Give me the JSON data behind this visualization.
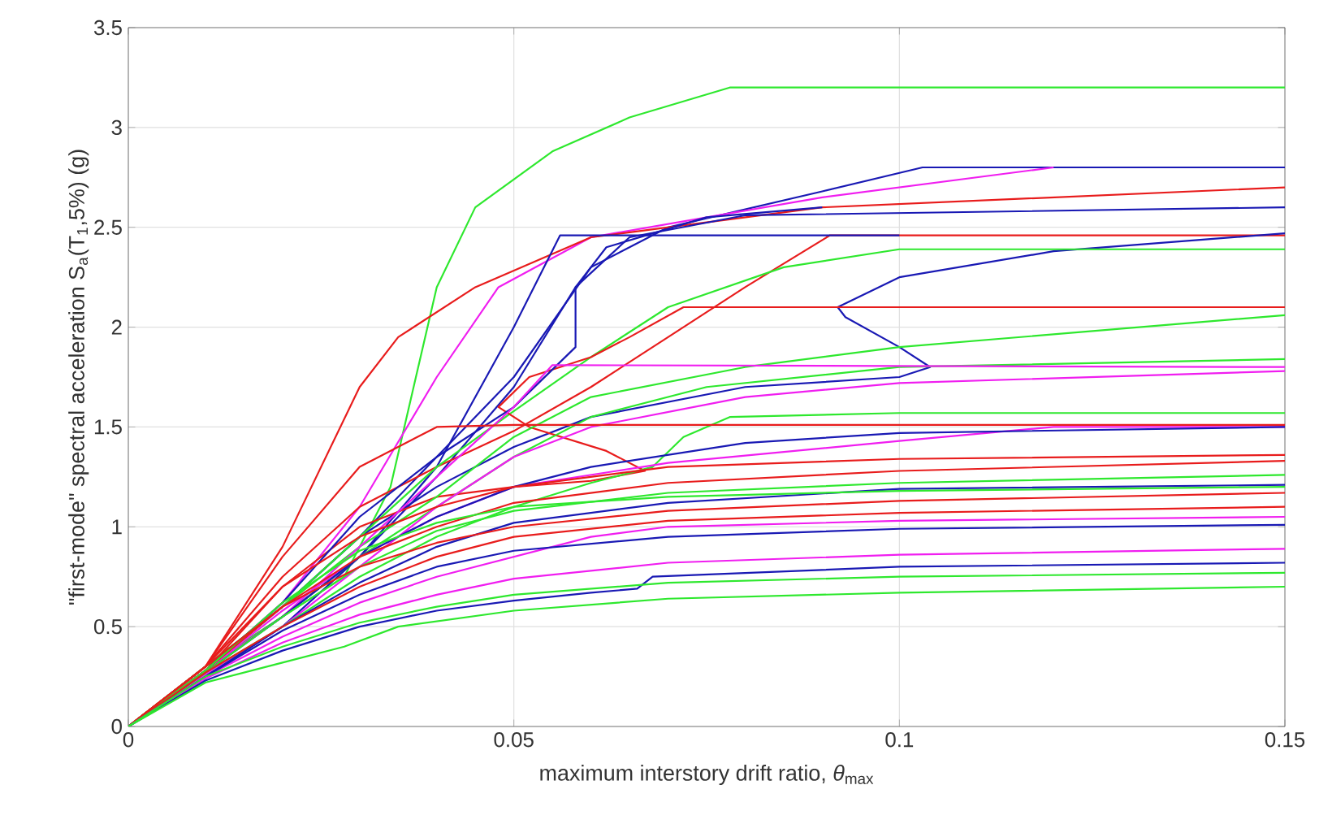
{
  "chart_data": {
    "type": "line",
    "xlabel": "maximum interstory drift ratio, *θ*$_{max}$",
    "ylabel": "\"first-mode\" spectral acceleration S$_{a}$(T$_{1}$,5%) (g)",
    "xlim": [
      0,
      0.15
    ],
    "xticks": [
      0,
      0.05,
      0.1,
      0.15
    ],
    "ylim": [
      0,
      3.5
    ],
    "yticks": [
      0,
      0.5,
      1,
      1.5,
      2,
      2.5,
      3,
      3.5
    ],
    "grid": true,
    "marker": "none",
    "line_style": "solid",
    "series": [
      {
        "color": "#2ee82e",
        "x": [
          0,
          0.01,
          0.02,
          0.028,
          0.034,
          0.037,
          0.04,
          0.045,
          0.055,
          0.065,
          0.078,
          0.15
        ],
        "values": [
          0,
          0.3,
          0.55,
          0.75,
          1.2,
          1.7,
          2.2,
          2.6,
          2.88,
          3.05,
          3.2,
          3.2
        ]
      },
      {
        "color": "#1919b4",
        "x": [
          0,
          0.01,
          0.02,
          0.03,
          0.04,
          0.05,
          0.06,
          0.07,
          0.09,
          0.103,
          0.15
        ],
        "values": [
          0,
          0.3,
          0.6,
          0.95,
          1.35,
          1.75,
          2.3,
          2.5,
          2.68,
          2.8,
          2.8
        ]
      },
      {
        "color": "#f01ef0",
        "x": [
          0,
          0.01,
          0.02,
          0.03,
          0.04,
          0.048,
          0.06,
          0.09,
          0.12
        ],
        "values": [
          0,
          0.28,
          0.62,
          1.1,
          1.75,
          2.2,
          2.45,
          2.65,
          2.8
        ]
      },
      {
        "color": "#e81c1c",
        "x": [
          0,
          0.01,
          0.02,
          0.025,
          0.03,
          0.035,
          0.045,
          0.06,
          0.09,
          0.15
        ],
        "values": [
          0,
          0.3,
          0.9,
          1.3,
          1.7,
          1.95,
          2.2,
          2.45,
          2.6,
          2.7
        ]
      },
      {
        "color": "#1919b4",
        "x": [
          0,
          0.01,
          0.02,
          0.03,
          0.04,
          0.05,
          0.058,
          0.065,
          0.08,
          0.15
        ],
        "values": [
          0,
          0.28,
          0.55,
          0.85,
          1.25,
          1.7,
          2.2,
          2.45,
          2.56,
          2.6
        ]
      },
      {
        "color": "#e81c1c",
        "x": [
          0,
          0.01,
          0.02,
          0.03,
          0.04,
          0.05,
          0.06,
          0.07,
          0.08,
          0.091,
          0.15
        ],
        "values": [
          0,
          0.3,
          0.75,
          1.1,
          1.3,
          1.48,
          1.7,
          1.95,
          2.2,
          2.46,
          2.46
        ]
      },
      {
        "color": "#1919b4",
        "x": [
          0,
          0.01,
          0.02,
          0.03,
          0.04,
          0.05,
          0.056,
          0.1
        ],
        "values": [
          0,
          0.25,
          0.5,
          0.85,
          1.3,
          2.0,
          2.46,
          2.46
        ]
      },
      {
        "color": "#1919b4",
        "x": [
          0,
          0.01,
          0.02,
          0.03,
          0.04,
          0.05,
          0.06,
          0.08,
          0.1,
          0.104,
          0.1,
          0.093,
          0.092,
          0.1,
          0.12,
          0.15
        ],
        "values": [
          0,
          0.28,
          0.6,
          0.95,
          1.2,
          1.4,
          1.55,
          1.7,
          1.75,
          1.8,
          1.9,
          2.05,
          2.1,
          2.25,
          2.38,
          2.47
        ]
      },
      {
        "color": "#2ee82e",
        "x": [
          0,
          0.01,
          0.02,
          0.03,
          0.04,
          0.05,
          0.06,
          0.07,
          0.085,
          0.1,
          0.15
        ],
        "values": [
          0,
          0.3,
          0.6,
          0.95,
          1.3,
          1.58,
          1.85,
          2.1,
          2.3,
          2.39,
          2.39
        ]
      },
      {
        "color": "#e81c1c",
        "x": [
          0,
          0.01,
          0.02,
          0.03,
          0.04,
          0.05,
          0.06,
          0.067,
          0.062,
          0.052,
          0.048,
          0.052,
          0.06,
          0.065,
          0.072,
          0.15
        ],
        "values": [
          0,
          0.28,
          0.7,
          1.0,
          1.15,
          1.2,
          1.23,
          1.28,
          1.38,
          1.5,
          1.6,
          1.75,
          1.85,
          1.95,
          2.1,
          2.1
        ]
      },
      {
        "color": "#2ee82e",
        "x": [
          0,
          0.01,
          0.02,
          0.03,
          0.04,
          0.05,
          0.06,
          0.08,
          0.1,
          0.15
        ],
        "values": [
          0,
          0.3,
          0.6,
          0.9,
          1.15,
          1.45,
          1.65,
          1.8,
          1.9,
          2.06
        ]
      },
      {
        "color": "#1919b4",
        "x": [
          0,
          0.01,
          0.02,
          0.03,
          0.04,
          0.05,
          0.058,
          0.058,
          0.062,
          0.075,
          0.09
        ],
        "values": [
          0,
          0.28,
          0.62,
          1.05,
          1.35,
          1.6,
          1.9,
          2.2,
          2.4,
          2.55,
          2.6
        ]
      },
      {
        "color": "#2ee82e",
        "x": [
          0,
          0.01,
          0.02,
          0.03,
          0.04,
          0.05,
          0.06,
          0.075,
          0.1,
          0.15
        ],
        "values": [
          0,
          0.28,
          0.55,
          0.85,
          1.1,
          1.35,
          1.55,
          1.7,
          1.8,
          1.84
        ]
      },
      {
        "color": "#f01ef0",
        "x": [
          0,
          0.01,
          0.02,
          0.03,
          0.04,
          0.05,
          0.055,
          0.15
        ],
        "values": [
          0,
          0.28,
          0.55,
          0.9,
          1.25,
          1.6,
          1.81,
          1.8
        ]
      },
      {
        "color": "#f01ef0",
        "x": [
          0,
          0.01,
          0.02,
          0.03,
          0.04,
          0.05,
          0.06,
          0.08,
          0.1,
          0.15
        ],
        "values": [
          0,
          0.26,
          0.5,
          0.8,
          1.1,
          1.35,
          1.5,
          1.65,
          1.72,
          1.78
        ]
      },
      {
        "color": "#2ee82e",
        "x": [
          0,
          0.01,
          0.02,
          0.03,
          0.04,
          0.05,
          0.06,
          0.068,
          0.072,
          0.078,
          0.1,
          0.15
        ],
        "values": [
          0,
          0.27,
          0.5,
          0.75,
          0.95,
          1.1,
          1.22,
          1.3,
          1.45,
          1.55,
          1.57,
          1.57
        ]
      },
      {
        "color": "#e81c1c",
        "x": [
          0,
          0.01,
          0.02,
          0.03,
          0.04,
          0.05,
          0.15
        ],
        "values": [
          0,
          0.3,
          0.85,
          1.3,
          1.5,
          1.51,
          1.51
        ]
      },
      {
        "color": "#f01ef0",
        "x": [
          0,
          0.01,
          0.02,
          0.03,
          0.04,
          0.05,
          0.07,
          0.1,
          0.12,
          0.15
        ],
        "values": [
          0,
          0.28,
          0.58,
          0.85,
          1.05,
          1.2,
          1.32,
          1.43,
          1.5,
          1.5
        ]
      },
      {
        "color": "#1919b4",
        "x": [
          0,
          0.01,
          0.02,
          0.03,
          0.04,
          0.05,
          0.06,
          0.08,
          0.1,
          0.15
        ],
        "values": [
          0,
          0.27,
          0.55,
          0.85,
          1.05,
          1.2,
          1.3,
          1.42,
          1.47,
          1.5
        ]
      },
      {
        "color": "#e81c1c",
        "x": [
          0,
          0.01,
          0.02,
          0.03,
          0.04,
          0.05,
          0.07,
          0.1,
          0.15
        ],
        "values": [
          0,
          0.3,
          0.7,
          0.95,
          1.1,
          1.2,
          1.3,
          1.34,
          1.36
        ]
      },
      {
        "color": "#e81c1c",
        "x": [
          0,
          0.01,
          0.02,
          0.03,
          0.04,
          0.05,
          0.07,
          0.1,
          0.15
        ],
        "values": [
          0,
          0.28,
          0.6,
          0.85,
          1.0,
          1.12,
          1.22,
          1.28,
          1.33
        ]
      },
      {
        "color": "#2ee82e",
        "x": [
          0,
          0.01,
          0.02,
          0.03,
          0.04,
          0.05,
          0.07,
          0.1,
          0.15
        ],
        "values": [
          0,
          0.27,
          0.55,
          0.8,
          0.98,
          1.08,
          1.17,
          1.22,
          1.26
        ]
      },
      {
        "color": "#1919b4",
        "x": [
          0,
          0.01,
          0.02,
          0.03,
          0.04,
          0.05,
          0.07,
          0.1,
          0.15
        ],
        "values": [
          0,
          0.25,
          0.5,
          0.72,
          0.9,
          1.02,
          1.12,
          1.19,
          1.21
        ]
      },
      {
        "color": "#2ee82e",
        "x": [
          0,
          0.01,
          0.02,
          0.03,
          0.04,
          0.05,
          0.07,
          0.1,
          0.15
        ],
        "values": [
          0,
          0.28,
          0.62,
          0.88,
          1.02,
          1.1,
          1.15,
          1.18,
          1.2
        ]
      },
      {
        "color": "#e81c1c",
        "x": [
          0,
          0.01,
          0.02,
          0.03,
          0.04,
          0.05,
          0.07,
          0.1,
          0.15
        ],
        "values": [
          0,
          0.3,
          0.6,
          0.8,
          0.92,
          1.0,
          1.08,
          1.13,
          1.17
        ]
      },
      {
        "color": "#e81c1c",
        "x": [
          0,
          0.01,
          0.02,
          0.03,
          0.04,
          0.05,
          0.07,
          0.1,
          0.15
        ],
        "values": [
          0,
          0.27,
          0.5,
          0.7,
          0.85,
          0.95,
          1.03,
          1.07,
          1.1
        ]
      },
      {
        "color": "#f01ef0",
        "x": [
          0,
          0.01,
          0.02,
          0.03,
          0.04,
          0.05,
          0.06,
          0.07,
          0.1,
          0.15
        ],
        "values": [
          0,
          0.25,
          0.45,
          0.62,
          0.75,
          0.85,
          0.95,
          1.0,
          1.03,
          1.05
        ]
      },
      {
        "color": "#1919b4",
        "x": [
          0,
          0.01,
          0.02,
          0.03,
          0.04,
          0.05,
          0.07,
          0.1,
          0.15
        ],
        "values": [
          0,
          0.25,
          0.48,
          0.66,
          0.8,
          0.88,
          0.95,
          0.99,
          1.01
        ]
      },
      {
        "color": "#f01ef0",
        "x": [
          0,
          0.01,
          0.02,
          0.03,
          0.04,
          0.05,
          0.07,
          0.1,
          0.15
        ],
        "values": [
          0,
          0.24,
          0.42,
          0.56,
          0.66,
          0.74,
          0.82,
          0.86,
          0.89
        ]
      },
      {
        "color": "#1919b4",
        "x": [
          0,
          0.01,
          0.02,
          0.03,
          0.04,
          0.05,
          0.06,
          0.066,
          0.068,
          0.1,
          0.15
        ],
        "values": [
          0,
          0.23,
          0.38,
          0.5,
          0.58,
          0.63,
          0.67,
          0.69,
          0.75,
          0.8,
          0.82
        ]
      },
      {
        "color": "#2ee82e",
        "x": [
          0,
          0.01,
          0.02,
          0.03,
          0.04,
          0.05,
          0.07,
          0.1,
          0.15
        ],
        "values": [
          0,
          0.25,
          0.4,
          0.52,
          0.6,
          0.66,
          0.72,
          0.75,
          0.77
        ]
      },
      {
        "color": "#2ee82e",
        "x": [
          0,
          0.01,
          0.02,
          0.028,
          0.035,
          0.05,
          0.07,
          0.1,
          0.15
        ],
        "values": [
          0,
          0.22,
          0.32,
          0.4,
          0.5,
          0.58,
          0.64,
          0.67,
          0.7
        ]
      }
    ]
  }
}
